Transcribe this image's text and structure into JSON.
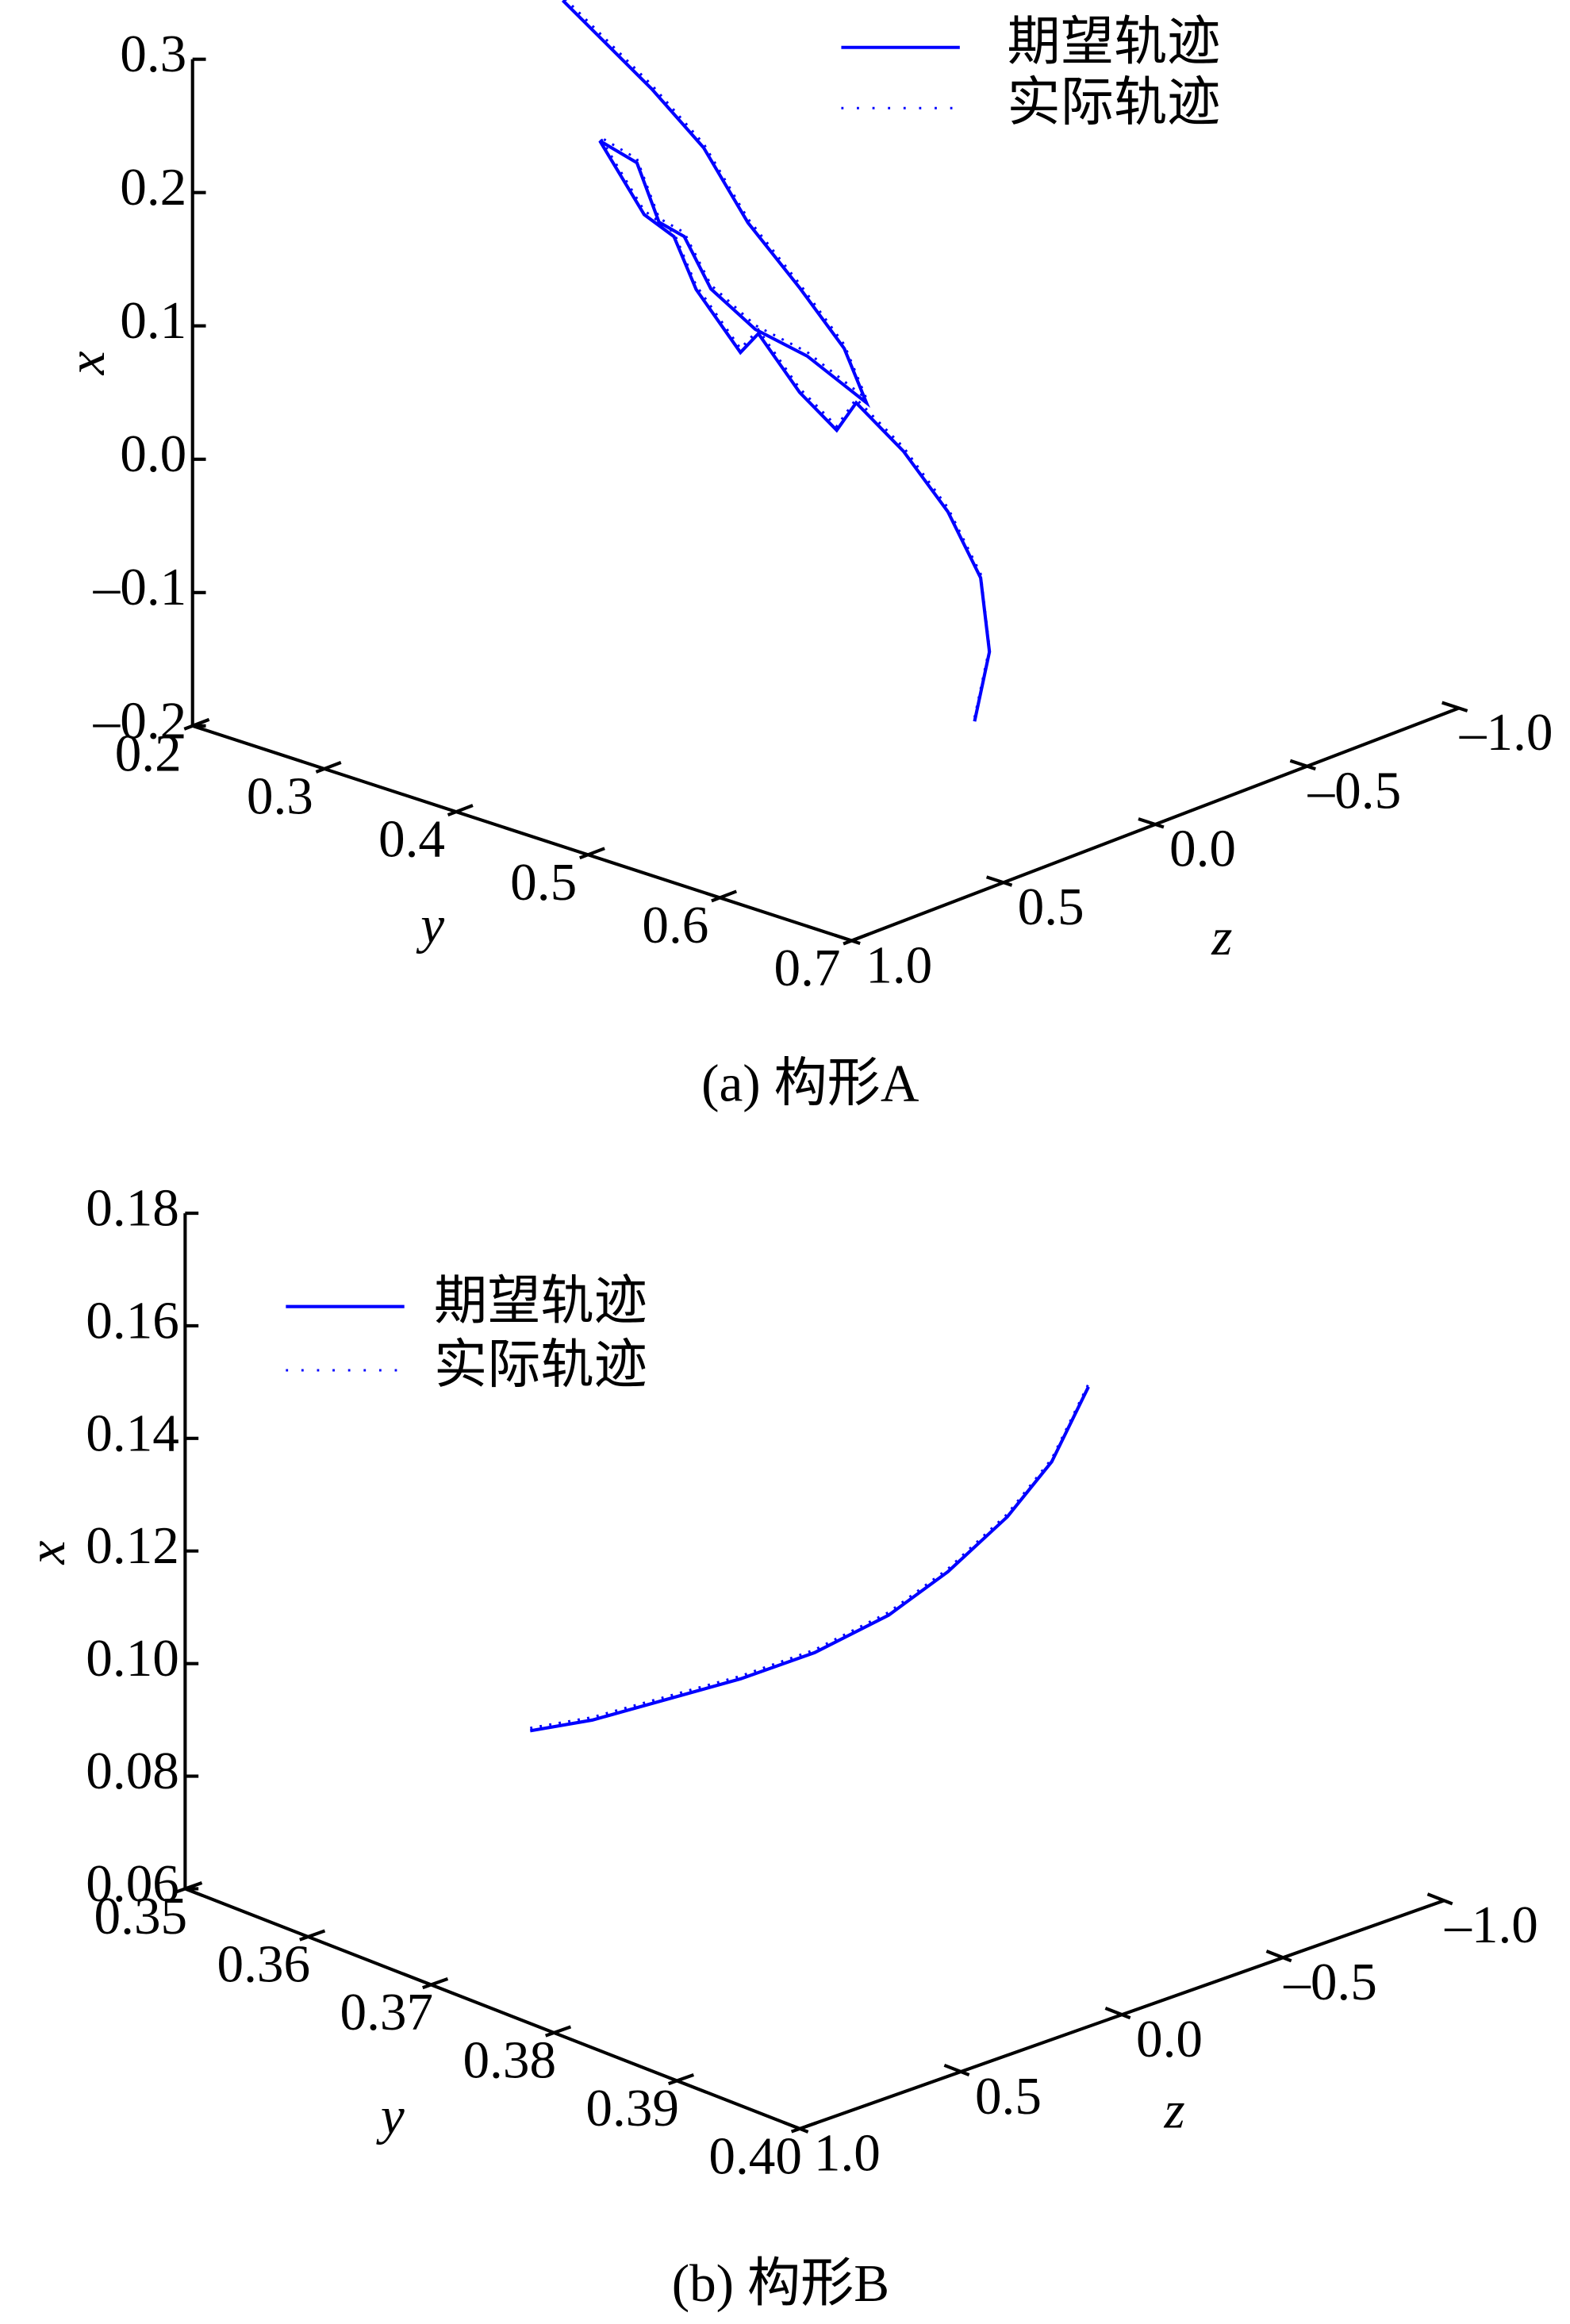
{
  "chart_data": [
    {
      "type": "line3d",
      "title": "(a) 构形A",
      "xlabel": "x",
      "ylabel": "y",
      "zlabel": "z",
      "xlim": [
        -0.2,
        0.3
      ],
      "xticks": [
        {
          "value": -0.2,
          "label": "–0.2"
        },
        {
          "value": -0.1,
          "label": "–0.1"
        },
        {
          "value": 0,
          "label": "0.0"
        },
        0.1,
        0.2,
        0.3
      ],
      "ylim": [
        0.2,
        0.7
      ],
      "yticks": [
        0.2,
        0.3,
        0.4,
        0.5,
        0.6,
        0.7
      ],
      "zlim": [
        1,
        -1
      ],
      "zticks": [
        {
          "value": 1,
          "label": "1.0"
        },
        0.5,
        {
          "value": 0,
          "label": "0.0"
        },
        {
          "value": -0.5,
          "label": "–0.5"
        },
        {
          "value": -1,
          "label": "–1.0"
        }
      ],
      "series": [
        {
          "name": "期望轨迹",
          "color": "#0000ff",
          "style": "solid",
          "x": [
            -0.176,
            -0.128,
            -0.07,
            -0.011,
            0.047,
            0.097,
            0.082,
            0.121,
            0.177,
            0.168,
            0.228,
            0.274,
            0.229,
            0.297,
            0.27,
            0.219,
            0.201,
            0.154,
            0.111,
            0.076,
            0.024,
            0.071,
            0.129,
            0.193,
            0.262,
            0.321,
            0.413
          ],
          "y": [
            0.55,
            0.55,
            0.55,
            0.55,
            0.55,
            0.55,
            0.55,
            0.55,
            0.55,
            0.55,
            0.55,
            0.55,
            0.45,
            0.45,
            0.45,
            0.45,
            0.45,
            0.45,
            0.45,
            0.45,
            0.45,
            0.45,
            0.45,
            0.45,
            0.45,
            0.45,
            0.45
          ],
          "z": [
            -0.056,
            -0.105,
            -0.076,
            0.032,
            0.178,
            0.334,
            0.398,
            0.52,
            0.656,
            0.715,
            0.861,
            0.934,
            0.598,
            0.744,
            0.622,
            0.549,
            0.466,
            0.378,
            0.232,
            0.061,
            -0.134,
            -0.061,
            0.085,
            0.256,
            0.402,
            0.573,
            0.866
          ]
        },
        {
          "name": "实际轨迹",
          "color": "#0000ff",
          "style": "dotted",
          "x": [
            -0.173,
            -0.125,
            -0.067,
            -0.008,
            0.05,
            0.1,
            0.085,
            0.124,
            0.18,
            0.171,
            0.231,
            0.277,
            0.232,
            0.3,
            0.273,
            0.222,
            0.204,
            0.157,
            0.114,
            0.079,
            0.027,
            0.074,
            0.132,
            0.196,
            0.265,
            0.324,
            0.416
          ],
          "y": [
            0.55,
            0.55,
            0.55,
            0.55,
            0.55,
            0.55,
            0.55,
            0.55,
            0.55,
            0.55,
            0.55,
            0.55,
            0.45,
            0.45,
            0.45,
            0.45,
            0.45,
            0.45,
            0.45,
            0.45,
            0.45,
            0.45,
            0.45,
            0.45,
            0.45,
            0.45,
            0.45
          ],
          "z": [
            -0.056,
            -0.105,
            -0.076,
            0.032,
            0.178,
            0.334,
            0.398,
            0.52,
            0.656,
            0.715,
            0.861,
            0.934,
            0.598,
            0.744,
            0.622,
            0.549,
            0.466,
            0.378,
            0.232,
            0.061,
            -0.134,
            -0.061,
            0.085,
            0.256,
            0.402,
            0.573,
            0.866
          ]
        }
      ]
    },
    {
      "type": "line3d",
      "title": "(b) 构形B",
      "xlabel": "x",
      "ylabel": "y",
      "zlabel": "z",
      "xlim": [
        0.06,
        0.18
      ],
      "xticks": [
        0.06,
        0.08,
        {
          "value": 0.1,
          "label": "0.10"
        },
        0.12,
        0.14,
        0.16,
        0.18
      ],
      "ylim": [
        0.35,
        0.4
      ],
      "yticks": [
        0.35,
        0.36,
        0.37,
        0.38,
        0.39,
        {
          "value": 0.4,
          "label": "0.40"
        }
      ],
      "zlim": [
        1,
        -1
      ],
      "zticks": [
        {
          "value": 1,
          "label": "1.0"
        },
        0.5,
        {
          "value": 0,
          "label": "0.0"
        },
        {
          "value": -0.5,
          "label": "–0.5"
        },
        {
          "value": -1,
          "label": "–1.0"
        }
      ],
      "series": [
        {
          "name": "期望轨迹",
          "color": "#0000ff",
          "style": "solid",
          "x": [
            0.107,
            0.105,
            0.104,
            0.103,
            0.103,
            0.105,
            0.109,
            0.115,
            0.122,
            0.133
          ],
          "y": [
            0.375,
            0.375,
            0.375,
            0.375,
            0.375,
            0.375,
            0.375,
            0.375,
            0.375,
            0.375
          ],
          "z": [
            0.883,
            0.69,
            0.46,
            0.23,
            0.0,
            -0.23,
            -0.414,
            -0.598,
            -0.736,
            -0.85
          ]
        },
        {
          "name": "实际轨迹",
          "color": "#0000ff",
          "style": "dotted",
          "x": [
            0.1075,
            0.1055,
            0.1045,
            0.1035,
            0.1035,
            0.1055,
            0.1095,
            0.1155,
            0.1225,
            0.1335
          ],
          "y": [
            0.375,
            0.375,
            0.375,
            0.375,
            0.375,
            0.375,
            0.375,
            0.375,
            0.375,
            0.375
          ],
          "z": [
            0.883,
            0.69,
            0.46,
            0.23,
            0.0,
            -0.23,
            -0.414,
            -0.598,
            -0.736,
            -0.85
          ]
        }
      ]
    }
  ]
}
